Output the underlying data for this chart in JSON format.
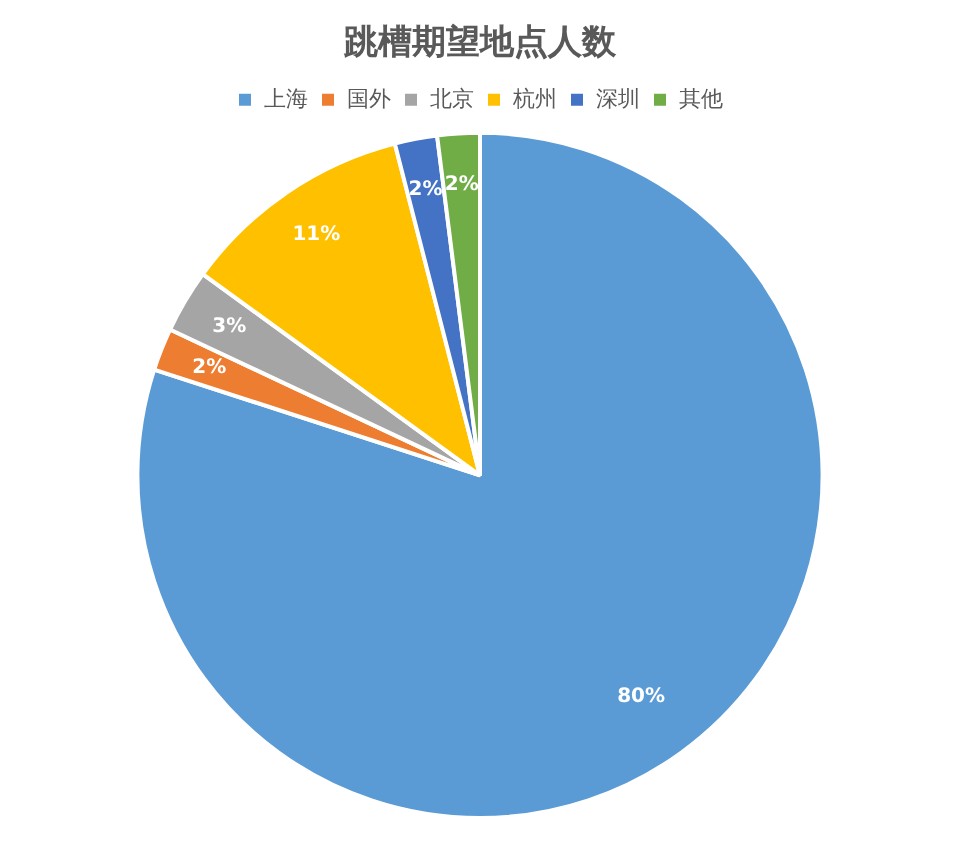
{
  "chart_data": {
    "type": "pie",
    "title": "跳槽期望地点人数",
    "categories": [
      "上海",
      "国外",
      "北京",
      "杭州",
      "深圳",
      "其他"
    ],
    "values": [
      80,
      2,
      3,
      11,
      2,
      2
    ],
    "colors": [
      "#5b9bd5",
      "#ed7d31",
      "#a5a5a5",
      "#ffc000",
      "#4472c4",
      "#70ad47"
    ],
    "value_labels": [
      "80%",
      "2%",
      "3%",
      "11%",
      "2%",
      "2%"
    ],
    "legend": "top"
  }
}
